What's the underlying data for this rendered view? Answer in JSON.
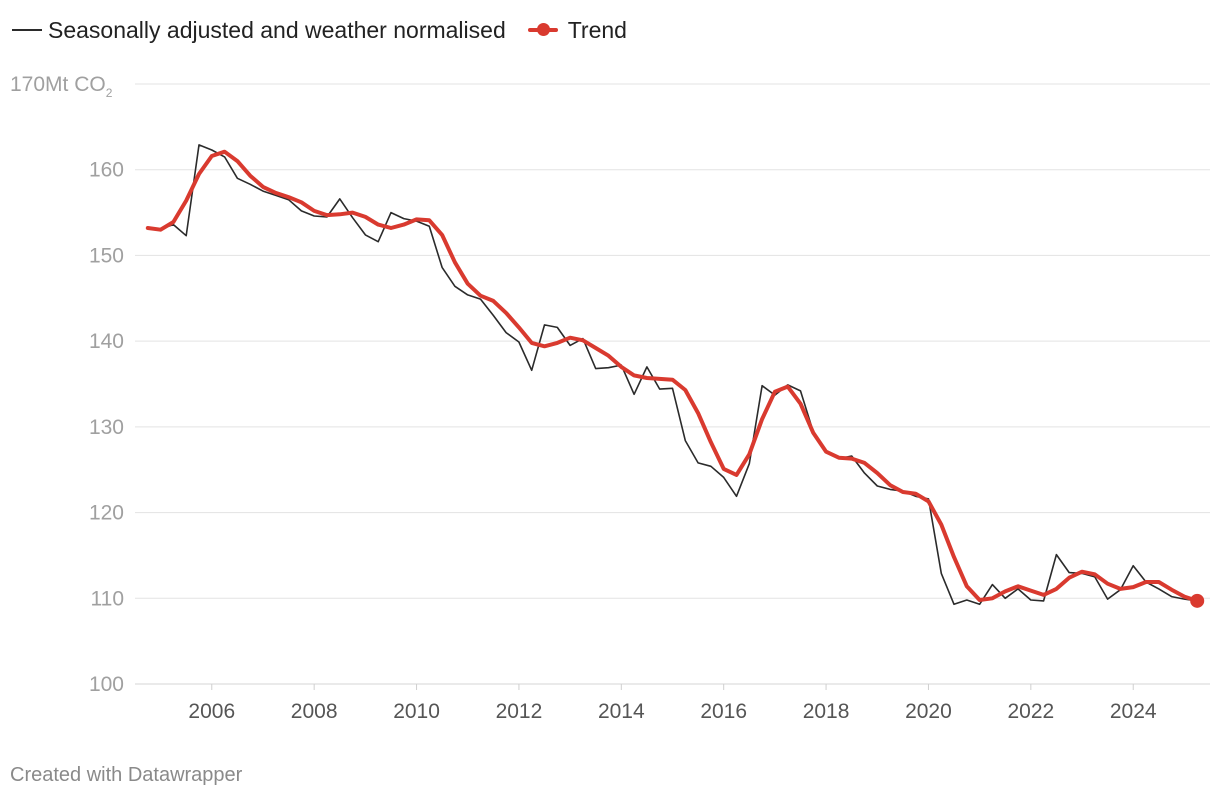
{
  "legend": {
    "items": [
      {
        "label": "Seasonally adjusted and weather normalised",
        "color": "#2b2b2b"
      },
      {
        "label": "Trend",
        "color": "#d93a2f"
      }
    ]
  },
  "footer": {
    "credit": "Created with Datawrapper"
  },
  "chart_data": {
    "type": "line",
    "title": "",
    "xlabel": "",
    "ylabel": "",
    "y_unit_label": {
      "value": "170",
      "unit": "Mt CO",
      "subscript": "2"
    },
    "ylim": [
      100,
      170
    ],
    "yticks": [
      100,
      110,
      120,
      130,
      140,
      150,
      160,
      170
    ],
    "xlim": [
      2004.5,
      2025.5
    ],
    "xticks": [
      2006,
      2008,
      2010,
      2012,
      2014,
      2016,
      2018,
      2020,
      2022,
      2024
    ],
    "grid": "horizontal",
    "legend_position": "top-left",
    "series": [
      {
        "name": "Seasonally adjusted and weather normalised",
        "color": "#2b2b2b",
        "x": [
          2004.75,
          2005.0,
          2005.25,
          2005.5,
          2005.75,
          2006.0,
          2006.25,
          2006.5,
          2006.75,
          2007.0,
          2007.25,
          2007.5,
          2007.75,
          2008.0,
          2008.25,
          2008.5,
          2008.75,
          2009.0,
          2009.25,
          2009.5,
          2009.75,
          2010.0,
          2010.25,
          2010.5,
          2010.75,
          2011.0,
          2011.25,
          2011.5,
          2011.75,
          2012.0,
          2012.25,
          2012.5,
          2012.75,
          2013.0,
          2013.25,
          2013.5,
          2013.75,
          2014.0,
          2014.25,
          2014.5,
          2014.75,
          2015.0,
          2015.25,
          2015.5,
          2015.75,
          2016.0,
          2016.25,
          2016.5,
          2016.75,
          2017.0,
          2017.25,
          2017.5,
          2017.75,
          2018.0,
          2018.25,
          2018.5,
          2018.75,
          2019.0,
          2019.25,
          2019.5,
          2019.75,
          2020.0,
          2020.25,
          2020.5,
          2020.75,
          2021.0,
          2021.25,
          2021.5,
          2021.75,
          2022.0,
          2022.25,
          2022.5,
          2022.75,
          2023.0,
          2023.25,
          2023.5,
          2023.75,
          2024.0,
          2024.25,
          2024.5,
          2024.75,
          2025.0,
          2025.25
        ],
        "y": [
          153.2,
          153.1,
          153.6,
          152.3,
          162.9,
          162.3,
          161.5,
          159.0,
          158.3,
          157.5,
          157.0,
          156.5,
          155.2,
          154.6,
          154.5,
          156.6,
          154.4,
          152.4,
          151.6,
          155.0,
          154.3,
          154.0,
          153.4,
          148.6,
          146.4,
          145.4,
          144.9,
          143.0,
          141.0,
          139.9,
          136.6,
          141.9,
          141.6,
          139.5,
          140.3,
          136.8,
          136.9,
          137.2,
          133.8,
          137.0,
          134.4,
          134.5,
          128.4,
          125.8,
          125.4,
          124.1,
          121.9,
          125.7,
          134.8,
          133.7,
          134.9,
          134.2,
          129.4,
          127.0,
          126.3,
          126.6,
          124.6,
          123.1,
          122.7,
          122.5,
          121.9,
          121.6,
          112.9,
          109.3,
          109.8,
          109.3,
          111.6,
          110.0,
          111.1,
          109.8,
          109.7,
          115.1,
          113.0,
          112.9,
          112.5,
          109.9,
          111.0,
          113.8,
          111.9,
          111.1,
          110.2,
          109.9,
          109.7
        ]
      },
      {
        "name": "Trend",
        "color": "#d93a2f",
        "x": [
          2004.75,
          2005.0,
          2005.25,
          2005.5,
          2005.75,
          2006.0,
          2006.25,
          2006.5,
          2006.75,
          2007.0,
          2007.25,
          2007.5,
          2007.75,
          2008.0,
          2008.25,
          2008.5,
          2008.75,
          2009.0,
          2009.25,
          2009.5,
          2009.75,
          2010.0,
          2010.25,
          2010.5,
          2010.75,
          2011.0,
          2011.25,
          2011.5,
          2011.75,
          2012.0,
          2012.25,
          2012.5,
          2012.75,
          2013.0,
          2013.25,
          2013.5,
          2013.75,
          2014.0,
          2014.25,
          2014.5,
          2014.75,
          2015.0,
          2015.25,
          2015.5,
          2015.75,
          2016.0,
          2016.25,
          2016.5,
          2016.75,
          2017.0,
          2017.25,
          2017.5,
          2017.75,
          2018.0,
          2018.25,
          2018.5,
          2018.75,
          2019.0,
          2019.25,
          2019.5,
          2019.75,
          2020.0,
          2020.25,
          2020.5,
          2020.75,
          2021.0,
          2021.25,
          2021.5,
          2021.75,
          2022.0,
          2022.25,
          2022.5,
          2022.75,
          2023.0,
          2023.25,
          2023.5,
          2023.75,
          2024.0,
          2024.25,
          2024.5,
          2024.75,
          2025.0,
          2025.25
        ],
        "y": [
          153.2,
          153.0,
          153.9,
          156.4,
          159.5,
          161.6,
          162.1,
          161.0,
          159.3,
          158.0,
          157.3,
          156.8,
          156.2,
          155.2,
          154.7,
          154.8,
          155.0,
          154.5,
          153.6,
          153.2,
          153.6,
          154.2,
          154.1,
          152.4,
          149.2,
          146.7,
          145.3,
          144.7,
          143.3,
          141.6,
          139.8,
          139.4,
          139.8,
          140.4,
          140.1,
          139.2,
          138.3,
          137.0,
          136.0,
          135.7,
          135.6,
          135.5,
          134.3,
          131.6,
          128.2,
          125.1,
          124.4,
          126.8,
          130.9,
          134.1,
          134.7,
          132.7,
          129.3,
          127.1,
          126.4,
          126.3,
          125.8,
          124.6,
          123.2,
          122.4,
          122.2,
          121.3,
          118.6,
          114.8,
          111.4,
          109.8,
          110.0,
          110.8,
          111.4,
          110.9,
          110.4,
          111.1,
          112.4,
          113.1,
          112.8,
          111.7,
          111.1,
          111.3,
          111.9,
          111.9,
          111.0,
          110.2,
          109.7
        ]
      }
    ]
  }
}
